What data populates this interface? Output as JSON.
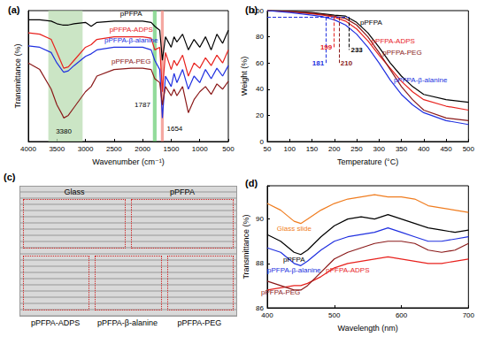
{
  "chart_data": [
    {
      "type": "line",
      "title": "(a)",
      "x_label": "Wavenumber (cm⁻¹)",
      "y_label": "Transmittance (%)",
      "xlim": [
        4000,
        500
      ],
      "xticks": [
        4000,
        3500,
        3000,
        2500,
        2000,
        1500,
        1000,
        500
      ],
      "ylim": [
        0,
        100
      ],
      "tick_labels": "x",
      "grid": false,
      "x": [
        4000,
        3800,
        3600,
        3500,
        3400,
        3380,
        3300,
        3200,
        3000,
        2900,
        2800,
        2500,
        2200,
        2000,
        1850,
        1787,
        1700,
        1654,
        1600,
        1500,
        1450,
        1400,
        1300,
        1200,
        1100,
        1000,
        900,
        800,
        700,
        600,
        500
      ],
      "series": [
        {
          "name": "pPFPA",
          "color": "#000000",
          "values": [
            93,
            93,
            92,
            90,
            89,
            89,
            89,
            90,
            91,
            88,
            91,
            92,
            92,
            92,
            91,
            88,
            85,
            62,
            80,
            72,
            80,
            76,
            82,
            70,
            78,
            72,
            80,
            70,
            82,
            75,
            85
          ]
        },
        {
          "name": "pPFPA-ADPS",
          "color": "#e8221e",
          "values": [
            83,
            82,
            78,
            68,
            58,
            56,
            57,
            62,
            72,
            74,
            78,
            80,
            80,
            80,
            79,
            70,
            72,
            38,
            68,
            55,
            62,
            58,
            66,
            50,
            60,
            56,
            64,
            58,
            66,
            60,
            70
          ]
        },
        {
          "name": "pPFPA-β-alanine",
          "color": "#2030e0",
          "values": [
            73,
            72,
            68,
            60,
            54,
            53,
            54,
            58,
            65,
            67,
            70,
            72,
            72,
            72,
            70,
            62,
            55,
            18,
            50,
            42,
            52,
            45,
            55,
            40,
            50,
            45,
            55,
            48,
            56,
            50,
            58
          ]
        },
        {
          "name": "pPFPA-PEG",
          "color": "#8b1a1a",
          "values": [
            60,
            55,
            40,
            28,
            20,
            18,
            20,
            26,
            38,
            42,
            50,
            55,
            56,
            56,
            55,
            48,
            45,
            28,
            42,
            35,
            40,
            35,
            42,
            22,
            32,
            38,
            42,
            36,
            44,
            40,
            46
          ]
        }
      ],
      "bands": [
        {
          "from": 3650,
          "to": 3050,
          "color": "#b9dcb2"
        },
        {
          "from": 1820,
          "to": 1755,
          "color": "#6fcf7a"
        },
        {
          "from": 1680,
          "to": 1630,
          "color": "#f28b82"
        }
      ],
      "annotations": [
        {
          "text": "3380",
          "x": 3380,
          "y": 8
        },
        {
          "text": "1787",
          "x": 1787,
          "y": 28
        },
        {
          "text": "1654",
          "x": 1654,
          "y": 10
        }
      ]
    },
    {
      "type": "line",
      "title": "(b)",
      "x_label": "Temperature (°C)",
      "y_label": "Weight (%)",
      "xlim": [
        50,
        500
      ],
      "xticks": [
        50,
        100,
        150,
        200,
        250,
        300,
        350,
        400,
        450,
        500
      ],
      "ylim": [
        0,
        100
      ],
      "yticks": [
        0,
        20,
        40,
        60,
        80,
        100
      ],
      "grid": false,
      "x": [
        50,
        100,
        150,
        175,
        200,
        225,
        250,
        275,
        300,
        325,
        350,
        375,
        400,
        450,
        500
      ],
      "series": [
        {
          "name": "pPFPA",
          "color": "#000000",
          "values": [
            100,
            99.5,
            98.5,
            97.5,
            96.5,
            95.8,
            91,
            83,
            72,
            60,
            50,
            42,
            36,
            32,
            30
          ]
        },
        {
          "name": "pPFPA-ADPS",
          "color": "#e8221e",
          "values": [
            100,
            99,
            97.5,
            96.5,
            95,
            92,
            86,
            77,
            66,
            56,
            46,
            38,
            32,
            27,
            24
          ]
        },
        {
          "name": "pPFPA-PEG",
          "color": "#8b1a1a",
          "values": [
            100,
            99.5,
            98,
            97,
            95.8,
            94,
            89,
            80,
            68,
            55,
            42,
            32,
            24,
            18,
            16
          ]
        },
        {
          "name": "pPFPA-β-alanine",
          "color": "#2030e0",
          "values": [
            100,
            98.5,
            96.5,
            95.3,
            93,
            89,
            82,
            72,
            60,
            47,
            36,
            28,
            22,
            16,
            13
          ]
        }
      ],
      "threshold": 95,
      "markers": [
        {
          "label": "199",
          "x": 199,
          "y": 72,
          "color": "#e8221e"
        },
        {
          "label": "181",
          "x": 181,
          "y": 60,
          "color": "#2030e0"
        },
        {
          "label": "210",
          "x": 210,
          "y": 60,
          "color": "#8b1a1a"
        },
        {
          "label": "233",
          "x": 233,
          "y": 70,
          "color": "#000000"
        }
      ]
    },
    {
      "type": "line",
      "title": "(d)",
      "x_label": "Wavelength (nm)",
      "y_label": "Transmittance (%)",
      "xlim": [
        400,
        700
      ],
      "xticks": [
        400,
        500,
        600,
        700
      ],
      "ylim": [
        86,
        91.5
      ],
      "yticks": [
        86,
        88,
        90
      ],
      "grid": false,
      "x": [
        400,
        420,
        440,
        450,
        460,
        480,
        500,
        520,
        540,
        560,
        580,
        600,
        620,
        640,
        660,
        680,
        700
      ],
      "series": [
        {
          "name": "Glass slide",
          "color": "#f07d20",
          "values": [
            90.7,
            90.4,
            89.9,
            89.8,
            90.0,
            90.4,
            90.7,
            90.9,
            91.0,
            91.1,
            91.0,
            91.0,
            90.9,
            90.6,
            90.5,
            90.4,
            90.3
          ]
        },
        {
          "name": "pPFPA",
          "color": "#000000",
          "values": [
            89.3,
            89.0,
            88.5,
            88.4,
            88.6,
            89.2,
            89.7,
            90.0,
            90.1,
            90.0,
            90.2,
            90.0,
            89.8,
            89.6,
            89.5,
            89.4,
            89.5
          ]
        },
        {
          "name": "pPFPA-β-alanine",
          "color": "#2030e0",
          "values": [
            88.7,
            88.5,
            88.0,
            87.9,
            88.1,
            88.6,
            89.0,
            89.2,
            89.3,
            89.4,
            89.6,
            89.4,
            89.2,
            89.0,
            89.0,
            89.1,
            89.2
          ]
        },
        {
          "name": "pPFPA-ADPS",
          "color": "#e8221e",
          "values": [
            86.8,
            86.9,
            87.0,
            87.0,
            87.1,
            87.4,
            87.8,
            88.0,
            88.1,
            88.2,
            88.3,
            88.2,
            88.1,
            88.0,
            88.0,
            88.1,
            88.2
          ]
        },
        {
          "name": "pPFPA-PEG",
          "color": "#8b1a1a",
          "values": [
            87.2,
            87.0,
            86.8,
            86.8,
            87.0,
            87.6,
            88.2,
            88.5,
            88.7,
            88.9,
            89.0,
            89.0,
            88.9,
            88.6,
            88.5,
            88.6,
            88.9
          ]
        }
      ]
    }
  ],
  "photo": {
    "title": "(c)",
    "top_labels": [
      "Glass",
      "pPFPA"
    ],
    "bottom_labels": [
      "pPFPA-ADPS",
      "pPFPA-β-alanine",
      "pPFPA-PEG"
    ]
  }
}
